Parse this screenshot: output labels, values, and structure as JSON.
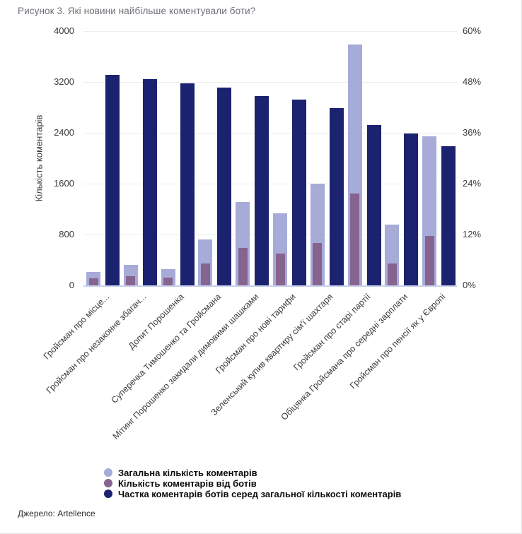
{
  "title": "Рисунок 3. Які новини найбільше коментували боти?",
  "source": "Джерело: Artellence",
  "y_axis": {
    "label": "Кількість коментарів",
    "ticks": [
      "4000",
      "3200",
      "2400",
      "1600",
      "800",
      "0"
    ]
  },
  "y2_axis": {
    "ticks": [
      "60%",
      "48%",
      "36%",
      "24%",
      "12%",
      "0%"
    ]
  },
  "colors": {
    "total": "#a6abd8",
    "bots": "#87648f",
    "share": "#1b2270",
    "gridline": "#ececec",
    "axis_line": "#c7d0ec"
  },
  "chart_data": {
    "type": "bar",
    "title": "Рисунок 3. Які новини найбільше коментували боти?",
    "ylabel": "Кількість коментарів",
    "ylabel_right": "%",
    "ylim_left": [
      0,
      4000
    ],
    "ylim_right": [
      0,
      60
    ],
    "grid": true,
    "legend_position": "bottom-left",
    "categories": [
      "Гройсман про місце...",
      "Гройсман про незаконне збагач...",
      "Допит Порошенка",
      "Суперечка Тимошенко та Гройсмана",
      "Мітинг Порошенко закидали димовими шашками",
      "Гройсман про нові тарифи",
      "Зеленський купив квартиру сім'ї шахтаря",
      "Гройсман про старі партії",
      "Обіцянка Гройсмана про середні зарплати",
      "Гройсман про пенсії як у Європі"
    ],
    "series": [
      {
        "name": "Загальна кількість коментарів",
        "axis": "left",
        "color": "#a6abd8",
        "values": [
          210,
          320,
          260,
          720,
          1310,
          1130,
          1600,
          3790,
          960,
          2350
        ]
      },
      {
        "name": "Кількість коментарів від ботів",
        "axis": "left",
        "color": "#87648f",
        "values": [
          110,
          150,
          125,
          340,
          590,
          500,
          670,
          1450,
          350,
          780
        ]
      },
      {
        "name": "Частка коментарів ботів серед загальної кількості коментарів",
        "axis": "right",
        "unit": "%",
        "color": "#1b2270",
        "values": [
          49.7,
          48.7,
          47.7,
          46.6,
          44.7,
          43.8,
          41.8,
          37.9,
          35.8,
          32.8
        ]
      }
    ]
  }
}
